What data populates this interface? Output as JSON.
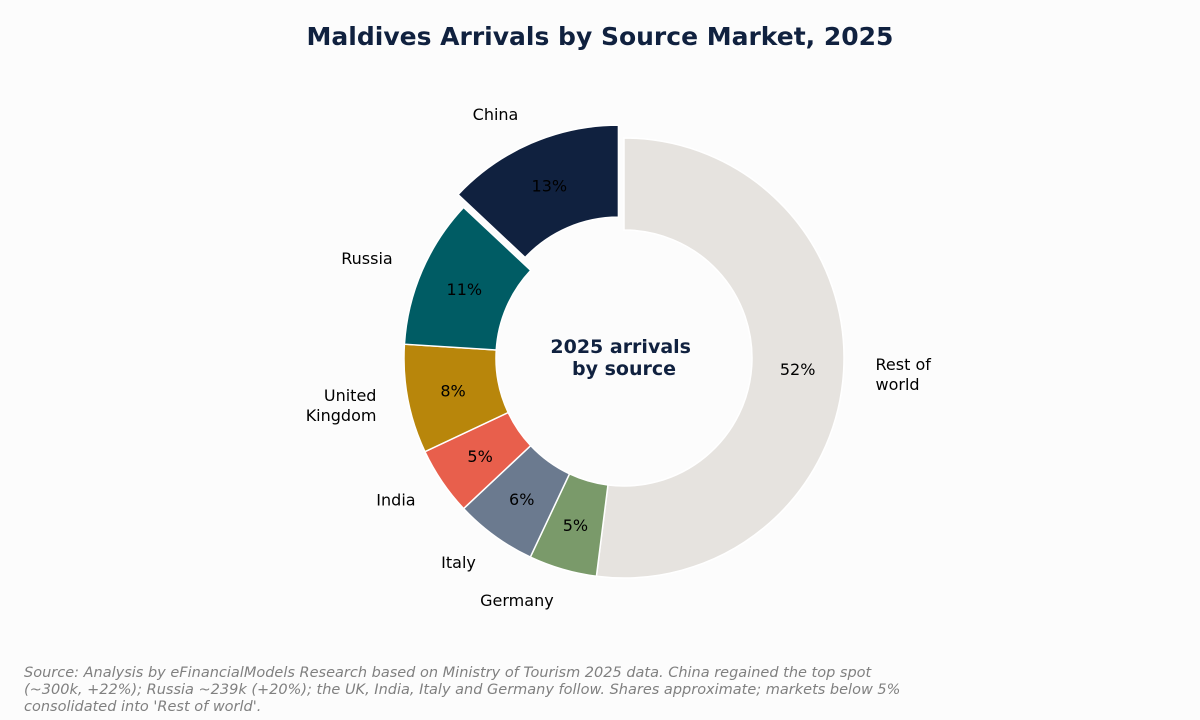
{
  "chart_data": {
    "type": "pie",
    "variant": "donut",
    "title": "Maldives Arrivals by Source Market, 2025",
    "center_text": [
      "2025 arrivals",
      "by source"
    ],
    "categories": [
      "Rest of world",
      "Germany",
      "Italy",
      "India",
      "United Kingdom",
      "Russia",
      "China"
    ],
    "category_lines": [
      [
        "Rest of",
        "world"
      ],
      [
        "Germany"
      ],
      [
        "Italy"
      ],
      [
        "India"
      ],
      [
        "United",
        "Kingdom"
      ],
      [
        "Russia"
      ],
      [
        "China"
      ]
    ],
    "values": [
      52,
      5,
      6,
      5,
      8,
      11,
      13
    ],
    "value_labels": [
      "52%",
      "5%",
      "6%",
      "5%",
      "8%",
      "11%",
      "13%"
    ],
    "colors": [
      "#e6e3df",
      "#7a9a6a",
      "#6b7a8f",
      "#e85f4c",
      "#b8860b",
      "#005c64",
      "#10213f"
    ],
    "exploded": "China",
    "start_angle": "12 o'clock, clockwise"
  },
  "source_note": "Source: Analysis by eFinancialModels Research based on Ministry of Tourism 2025 data. China regained the top spot (~300k, +22%); Russia ~239k (+20%); the UK, India, Italy and Germany follow. Shares approximate; markets below 5% consolidated into 'Rest of world'."
}
